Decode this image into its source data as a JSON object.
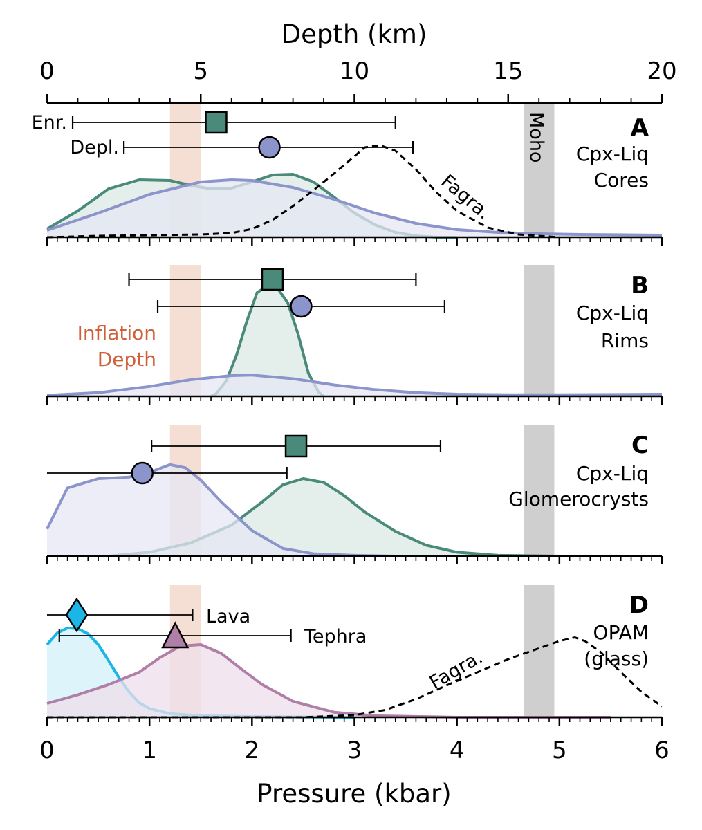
{
  "colors": {
    "enriched": "#4a8a7a",
    "enriched_fill": "#dbe8e3",
    "depleted": "#8c94cc",
    "depleted_fill": "#e6e7f4",
    "lava": "#1bb6e6",
    "lava_fill": "#d3f0fa",
    "tephra": "#b07fa8",
    "tephra_fill": "#eedfeb",
    "inflation_band": "#f3d8cc",
    "moho_band": "#cfcfcf",
    "inflation_text": "#d0603a"
  },
  "chart_data": {
    "type": "area",
    "top_axis": {
      "label": "Depth (km)",
      "range": [
        0,
        20
      ],
      "ticks": [
        "0",
        "5",
        "10",
        "15",
        "20"
      ]
    },
    "bottom_axis": {
      "label": "Pressure (kbar)",
      "range": [
        0,
        6
      ],
      "ticks": [
        "0",
        "1",
        "2",
        "3",
        "4",
        "5",
        "6"
      ]
    },
    "bands": {
      "inflation_depth_kbar": [
        1.2,
        1.5
      ],
      "moho_kbar": [
        4.65,
        4.95
      ],
      "moho_label": "Moho",
      "inflation_label": [
        "Inflation",
        "Depth"
      ]
    },
    "panels": [
      {
        "letter": "A",
        "title_lines": [
          "Cpx-Liq",
          "Cores"
        ],
        "markers": [
          {
            "label": "Enr.",
            "shape": "square",
            "series": "enriched",
            "x": 1.65,
            "lo": 0.25,
            "hi": 3.4
          },
          {
            "label": "Depl.",
            "shape": "circle",
            "series": "depleted",
            "x": 2.17,
            "lo": 0.75,
            "hi": 3.57
          }
        ],
        "densities": [
          {
            "series": "enriched",
            "x": [
              0,
              0.3,
              0.6,
              0.9,
              1.2,
              1.4,
              1.6,
              1.8,
              2.0,
              2.2,
              2.4,
              2.6,
              2.8,
              3.0,
              3.2,
              3.4,
              3.6,
              3.8,
              4.0
            ],
            "y": [
              0.12,
              0.38,
              0.7,
              0.83,
              0.82,
              0.75,
              0.7,
              0.71,
              0.8,
              0.9,
              0.91,
              0.8,
              0.58,
              0.35,
              0.18,
              0.07,
              0.02,
              0.0,
              0.0
            ]
          },
          {
            "series": "depleted",
            "x": [
              0,
              0.5,
              1.0,
              1.5,
              1.8,
              2.0,
              2.4,
              2.8,
              3.2,
              3.6,
              4.0,
              4.4,
              4.8,
              5.2,
              6.0
            ],
            "y": [
              0.1,
              0.35,
              0.62,
              0.8,
              0.83,
              0.82,
              0.72,
              0.55,
              0.35,
              0.2,
              0.11,
              0.07,
              0.05,
              0.04,
              0.03
            ]
          }
        ],
        "fagra": {
          "label": "Fagra.",
          "x": [
            0,
            0.5,
            1.0,
            1.5,
            1.8,
            2.0,
            2.2,
            2.4,
            2.6,
            2.8,
            3.0,
            3.1,
            3.25,
            3.4,
            3.6,
            3.8,
            4.0,
            4.3,
            4.6,
            5.0
          ],
          "y": [
            0.0,
            0.02,
            0.03,
            0.04,
            0.06,
            0.12,
            0.25,
            0.45,
            0.68,
            0.92,
            1.17,
            1.3,
            1.33,
            1.25,
            0.98,
            0.65,
            0.38,
            0.14,
            0.04,
            0.0
          ]
        }
      },
      {
        "letter": "B",
        "title_lines": [
          "Cpx-Liq",
          "Rims"
        ],
        "markers": [
          {
            "label": "",
            "shape": "square",
            "series": "enriched",
            "x": 2.2,
            "lo": 0.8,
            "hi": 3.6
          },
          {
            "label": "",
            "shape": "circle",
            "series": "depleted",
            "x": 2.48,
            "lo": 1.08,
            "hi": 3.88
          }
        ],
        "densities": [
          {
            "series": "enriched",
            "x": [
              1.6,
              1.65,
              1.75,
              1.85,
              1.95,
              2.05,
              2.15,
              2.25,
              2.35,
              2.45,
              2.55,
              2.65,
              2.7
            ],
            "y": [
              0.0,
              0.05,
              0.3,
              0.8,
              1.45,
              2.0,
              2.13,
              2.08,
              1.8,
              1.2,
              0.45,
              0.08,
              0.0
            ]
          },
          {
            "series": "depleted",
            "x": [
              0,
              0.5,
              1.0,
              1.4,
              1.8,
              2.0,
              2.4,
              2.8,
              3.2,
              3.6,
              4.0,
              4.5,
              5.0,
              6.0
            ],
            "y": [
              0.02,
              0.07,
              0.19,
              0.32,
              0.4,
              0.41,
              0.34,
              0.22,
              0.13,
              0.07,
              0.04,
              0.03,
              0.03,
              0.04
            ]
          }
        ]
      },
      {
        "letter": "C",
        "title_lines": [
          "Cpx-Liq",
          "Glomerocrysts"
        ],
        "markers": [
          {
            "label": "",
            "shape": "square",
            "series": "enriched",
            "x": 2.43,
            "lo": 1.02,
            "hi": 3.84
          },
          {
            "label": "",
            "shape": "circle",
            "series": "depleted",
            "x": 0.93,
            "lo": 0.0,
            "hi": 2.34
          }
        ],
        "densities": [
          {
            "series": "enriched",
            "x": [
              0.6,
              1.0,
              1.4,
              1.8,
              2.1,
              2.3,
              2.5,
              2.7,
              2.9,
              3.1,
              3.4,
              3.7,
              4.0,
              4.4,
              5.0,
              6.0
            ],
            "y": [
              0.0,
              0.05,
              0.17,
              0.4,
              0.7,
              0.92,
              1.0,
              0.95,
              0.78,
              0.57,
              0.32,
              0.14,
              0.05,
              0.01,
              0.0,
              0.0
            ]
          },
          {
            "series": "depleted",
            "x": [
              0,
              0.2,
              0.5,
              0.8,
              1.0,
              1.2,
              1.35,
              1.5,
              1.7,
              2.0,
              2.3,
              2.6,
              3.0,
              3.4
            ],
            "y": [
              0.35,
              0.88,
              1.0,
              1.02,
              1.08,
              1.18,
              1.14,
              0.98,
              0.7,
              0.33,
              0.1,
              0.03,
              0.01,
              0.0
            ]
          }
        ]
      },
      {
        "letter": "D",
        "title_lines": [
          "OPAM",
          "(glass)"
        ],
        "markers": [
          {
            "label": "Lava",
            "shape": "diamond",
            "series": "lava",
            "x": 0.29,
            "lo": 0.0,
            "hi": 1.42
          },
          {
            "label": "Tephra",
            "shape": "triangle",
            "series": "tephra",
            "x": 1.25,
            "lo": 0.12,
            "hi": 2.38
          }
        ],
        "densities": [
          {
            "series": "lava",
            "x": [
              0,
              0.1,
              0.2,
              0.3,
              0.4,
              0.5,
              0.6,
              0.7,
              0.8,
              0.9,
              1.0,
              1.2,
              1.5,
              2.0,
              3.0
            ],
            "y": [
              1.0,
              1.16,
              1.23,
              1.22,
              1.15,
              1.0,
              0.78,
              0.55,
              0.35,
              0.2,
              0.12,
              0.05,
              0.02,
              0.01,
              0.0
            ]
          },
          {
            "series": "tephra",
            "x": [
              0,
              0.3,
              0.6,
              0.9,
              1.1,
              1.3,
              1.5,
              1.7,
              1.9,
              2.1,
              2.4,
              2.8,
              3.2,
              4.0,
              5.0,
              5.5
            ],
            "y": [
              0.19,
              0.31,
              0.45,
              0.62,
              0.82,
              0.98,
              1.0,
              0.88,
              0.66,
              0.45,
              0.22,
              0.07,
              0.02,
              0.0,
              0.0,
              0.0
            ]
          }
        ],
        "fagra": {
          "label": "Fagra.",
          "x": [
            0,
            1.0,
            2.0,
            2.5,
            3.0,
            3.3,
            3.6,
            3.9,
            4.2,
            4.5,
            4.8,
            5.0,
            5.15,
            5.25,
            5.4,
            5.6,
            5.8,
            6.0
          ],
          "y": [
            0.0,
            0.0,
            0.0,
            0.0,
            0.03,
            0.1,
            0.25,
            0.44,
            0.62,
            0.8,
            0.95,
            1.05,
            1.1,
            1.05,
            0.9,
            0.62,
            0.35,
            0.15
          ]
        }
      }
    ]
  }
}
